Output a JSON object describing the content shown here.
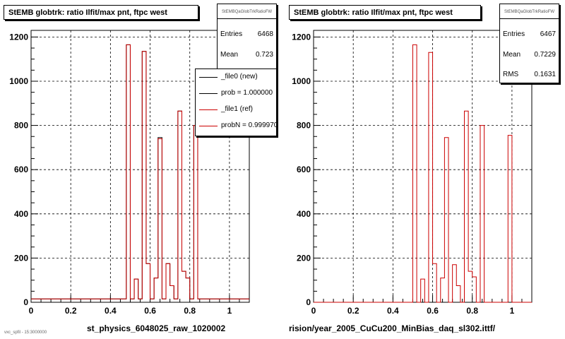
{
  "chart_data": [
    {
      "type": "histogram",
      "title": "StEMB globtrk: ratio Ilfit/max pnt, ftpc west",
      "xlabel": "st_physics_6048025_raw_1020002",
      "ylabel": "",
      "xlim": [
        0,
        1.1
      ],
      "ylim": [
        0,
        1230
      ],
      "xticks": [
        "0",
        "0.2",
        "0.4",
        "0.6",
        "0.8",
        "1"
      ],
      "yticks": [
        "0",
        "200",
        "400",
        "600",
        "800",
        "1000",
        "1200"
      ],
      "grid": true,
      "bin_width": 0.02,
      "series": [
        {
          "name": "_file0 (new)",
          "color": "#000000",
          "values": [
            15,
            15,
            15,
            15,
            15,
            15,
            15,
            15,
            15,
            15,
            15,
            15,
            15,
            15,
            15,
            15,
            15,
            15,
            15,
            15,
            15,
            15,
            15,
            15,
            1165,
            15,
            105,
            15,
            1135,
            175,
            15,
            110,
            745,
            15,
            175,
            75,
            15,
            865,
            140,
            110,
            15,
            800,
            15,
            15,
            15,
            15,
            15,
            15,
            15,
            15,
            15,
            15,
            15,
            15,
            15
          ]
        },
        {
          "name": "_file1 (ref)",
          "color": "#cc0000",
          "values": [
            15,
            15,
            15,
            15,
            15,
            15,
            15,
            15,
            15,
            15,
            15,
            15,
            15,
            15,
            15,
            15,
            15,
            15,
            15,
            15,
            15,
            15,
            15,
            15,
            1165,
            15,
            105,
            15,
            1135,
            175,
            15,
            110,
            740,
            15,
            175,
            75,
            15,
            865,
            140,
            110,
            15,
            800,
            15,
            15,
            15,
            15,
            15,
            15,
            15,
            15,
            15,
            15,
            15,
            15,
            15
          ]
        }
      ],
      "stats": {
        "header": "StEMBQaGlobTrkRatioFW",
        "rows": [
          {
            "label": "Entries",
            "value": "6468"
          },
          {
            "label": "Mean",
            "value": "0.723"
          }
        ]
      },
      "legend": {
        "position": "top-right",
        "entries": [
          {
            "text": "_file0 (new)",
            "color": "#000000"
          },
          {
            "text": "prob = 1.000000",
            "color": "#000000"
          },
          {
            "text": "_file1 (ref)",
            "color": "#cc0000"
          },
          {
            "text": "probN = 0.999970",
            "color": "#cc0000"
          }
        ]
      }
    },
    {
      "type": "histogram",
      "title": "StEMB globtrk: ratio Ilfit/max pnt, ftpc west",
      "xlabel": "rision/year_2005_CuCu200_MinBias_daq_sl302.ittf/",
      "ylabel": "",
      "xlim": [
        0,
        1.1
      ],
      "ylim": [
        0,
        1230
      ],
      "xticks": [
        "0",
        "0.2",
        "0.4",
        "0.6",
        "0.8",
        "1"
      ],
      "yticks": [
        "0",
        "200",
        "400",
        "600",
        "800",
        "1000",
        "1200"
      ],
      "grid": true,
      "bin_width": 0.02,
      "series": [
        {
          "name": "",
          "color": "#cc0000",
          "values": [
            0,
            0,
            0,
            0,
            0,
            0,
            0,
            0,
            0,
            0,
            0,
            0,
            0,
            0,
            0,
            0,
            0,
            0,
            0,
            0,
            0,
            0,
            0,
            0,
            0,
            1165,
            0,
            105,
            0,
            1130,
            175,
            0,
            110,
            745,
            0,
            170,
            75,
            0,
            865,
            140,
            115,
            0,
            800,
            0,
            0,
            0,
            0,
            0,
            0,
            755,
            0,
            0,
            0,
            0,
            0
          ]
        }
      ],
      "stats": {
        "header": "StEMBQaGlobTrkRatioFW",
        "rows": [
          {
            "label": "Entries",
            "value": "6467"
          },
          {
            "label": "Mean",
            "value": "0.7229"
          },
          {
            "label": "RMS",
            "value": "0.1631"
          }
        ]
      }
    }
  ],
  "footnote": "vxc_spfil - 15:3000000"
}
